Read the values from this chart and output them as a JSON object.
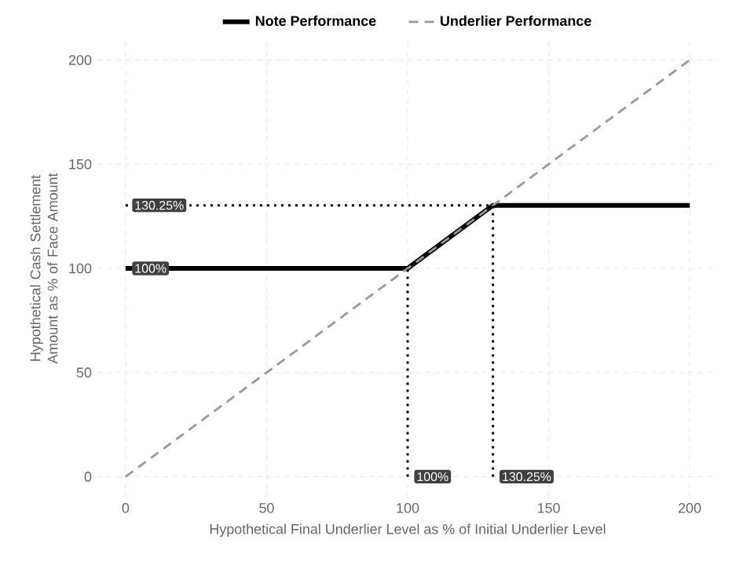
{
  "chart_data": {
    "type": "line",
    "xlabel": "Hypothetical Final Underlier Level as % of Initial Underlier Level",
    "ylabel": "Hypothetical Cash Settlement Amount as % of Face Amount",
    "xlim": [
      -10,
      210
    ],
    "ylim": [
      -10,
      210
    ],
    "xticks": [
      0,
      50,
      100,
      150,
      200
    ],
    "yticks": [
      0,
      50,
      100,
      150,
      200
    ],
    "grid": true,
    "legend": "top",
    "marker": "none",
    "series": [
      {
        "name": "Note Performance",
        "color": "#000000",
        "line_style": "solid",
        "x": [
          0,
          100,
          130.25,
          200
        ],
        "values": [
          100,
          100,
          130.25,
          130.25
        ]
      },
      {
        "name": "Underlier Performance",
        "color": "#999999",
        "line_style": "dashed",
        "x": [
          0,
          200
        ],
        "values": [
          0,
          200
        ]
      },
      {
        "color": "#000000",
        "line_style": "dotted",
        "x": [
          0,
          130.25
        ],
        "values": [
          130.25,
          130.25
        ]
      },
      {
        "color": "#000000",
        "line_style": "dotted",
        "x": [
          100,
          100
        ],
        "values": [
          0,
          100
        ]
      },
      {
        "color": "#000000",
        "line_style": "dotted",
        "x": [
          130.25,
          130.25
        ],
        "values": [
          0,
          130.25
        ]
      }
    ],
    "annotations": [
      {
        "text": "130.25%",
        "x": 0,
        "y": 130.25
      },
      {
        "text": "100%",
        "x": 0,
        "y": 100
      },
      {
        "text": "100%",
        "x": 100,
        "y": 0
      },
      {
        "text": "130.25%",
        "x": 130.25,
        "y": 0
      }
    ]
  }
}
